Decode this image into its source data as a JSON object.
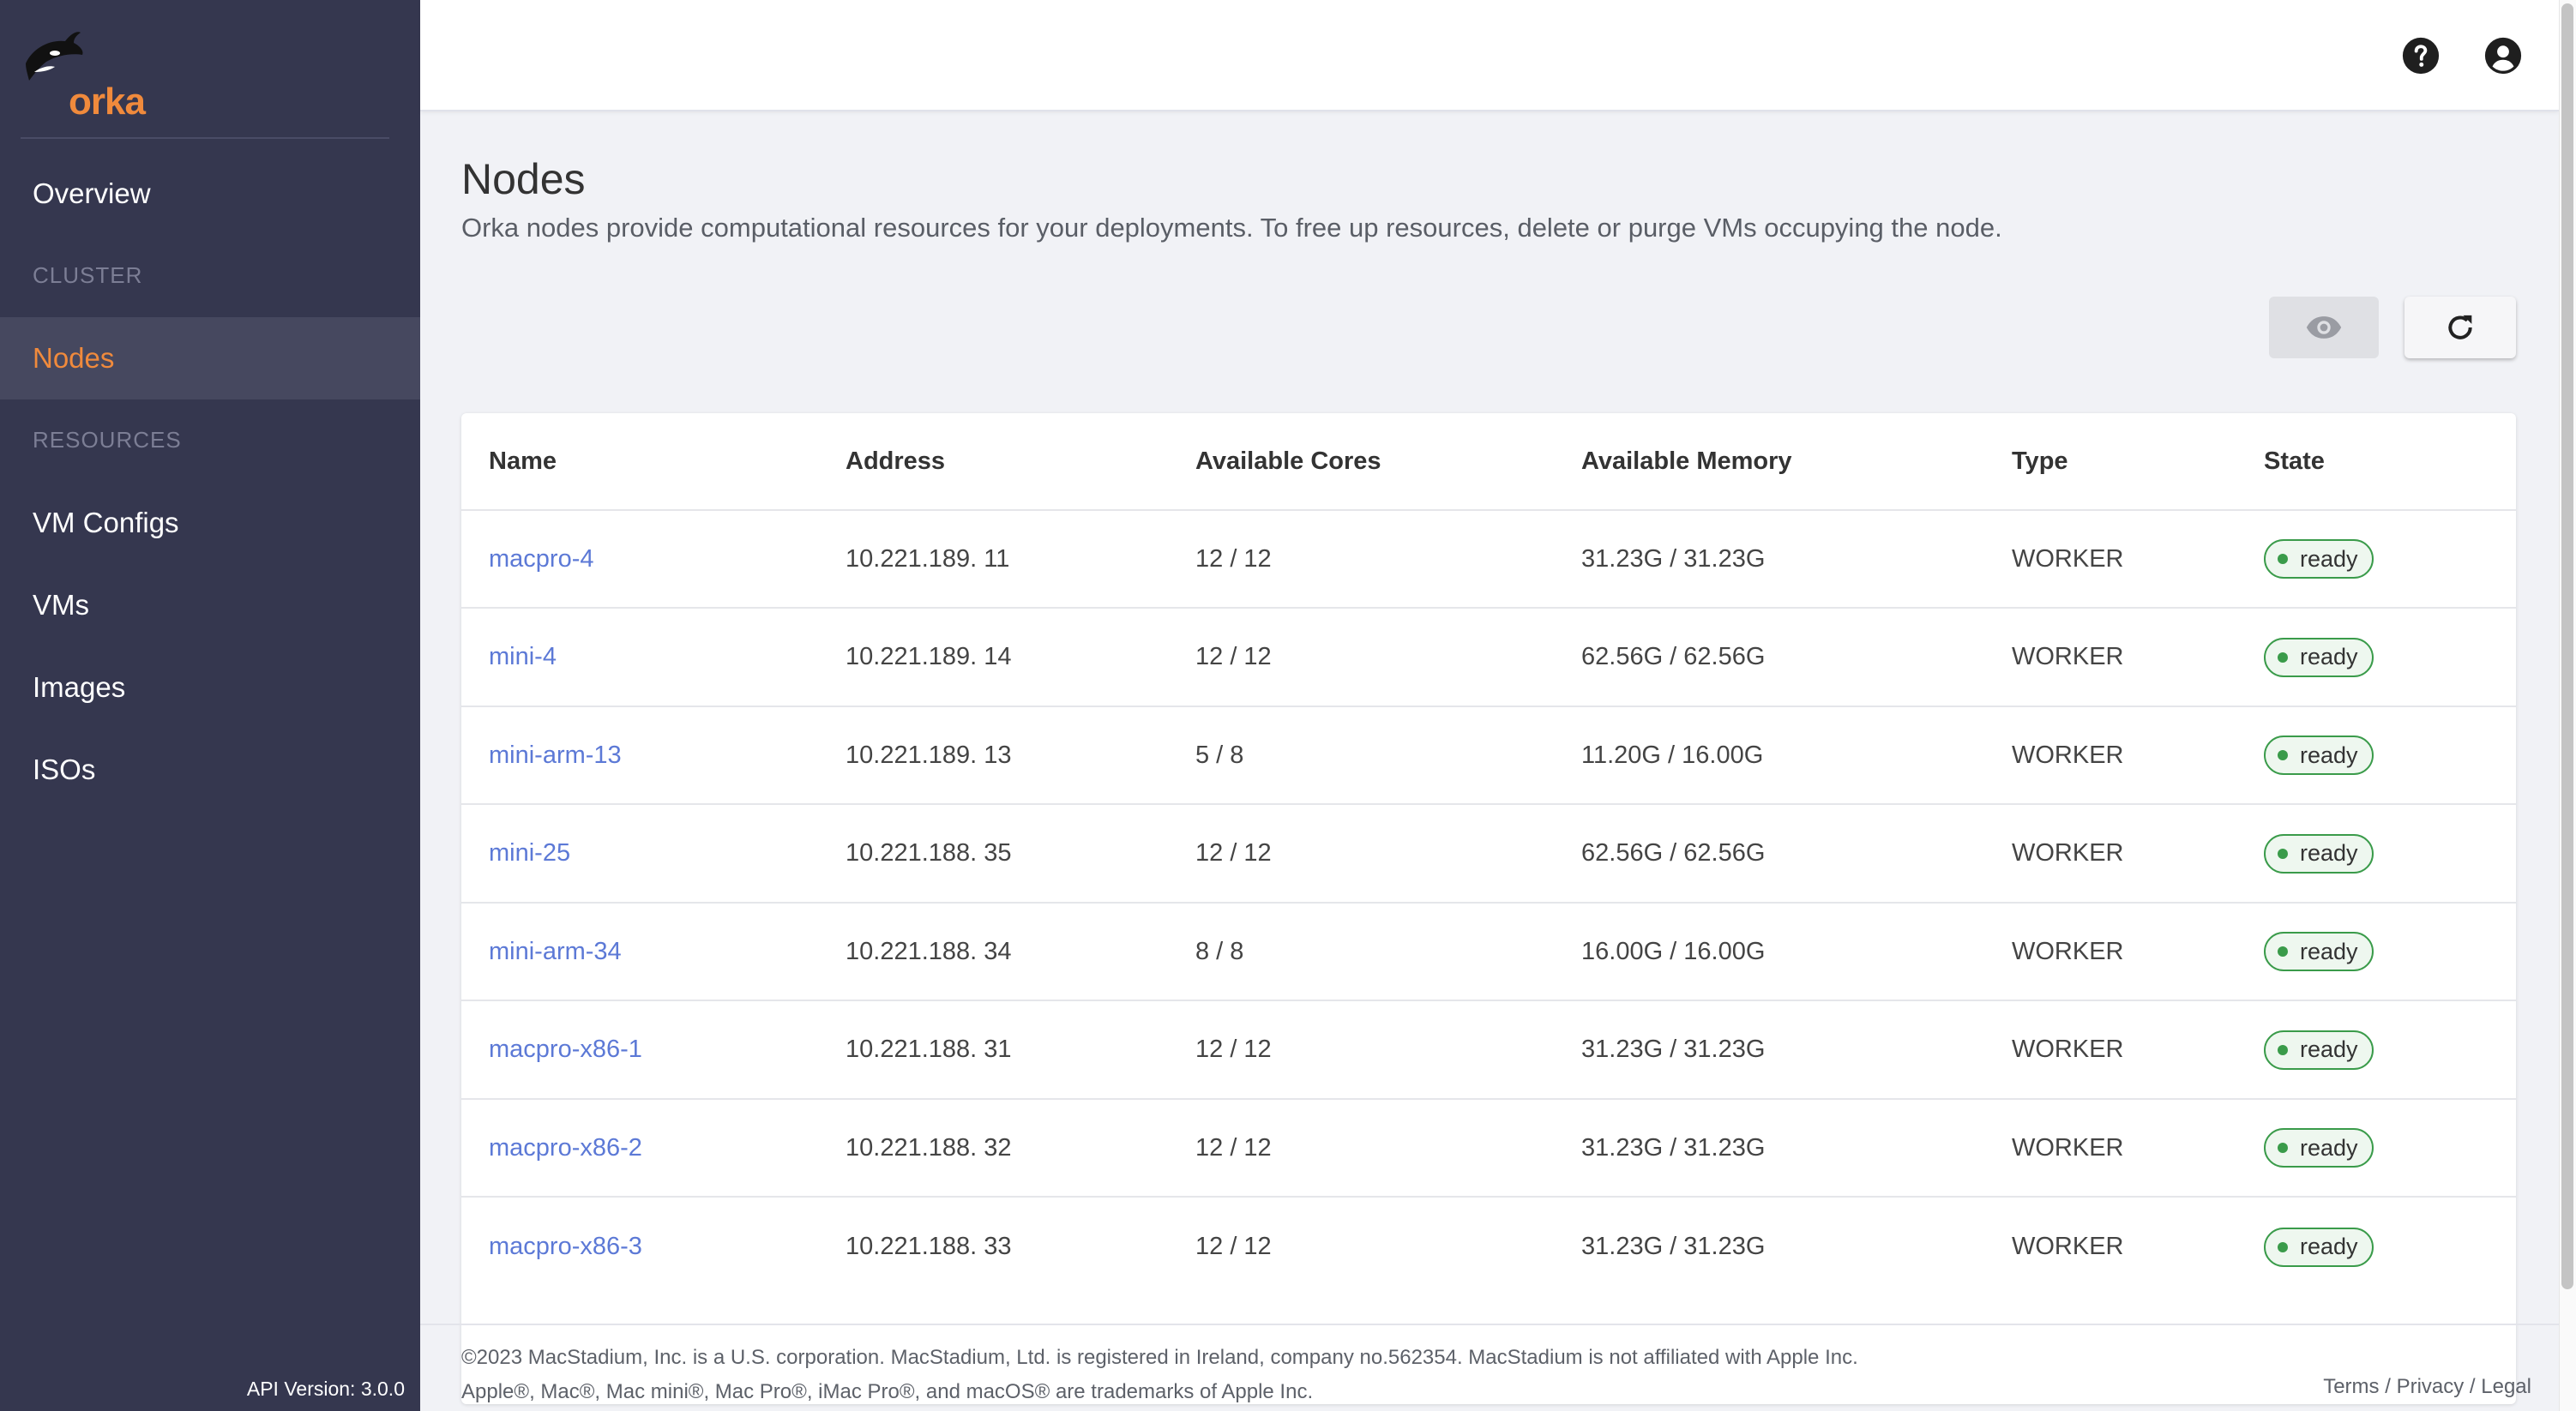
{
  "app": {
    "logo_text": "orka",
    "api_version": "API Version: 3.0.0"
  },
  "sidebar": {
    "overview": "Overview",
    "section_cluster": "CLUSTER",
    "nodes": "Nodes",
    "section_resources": "RESOURCES",
    "vm_configs": "VM Configs",
    "vms": "VMs",
    "images": "Images",
    "isos": "ISOs"
  },
  "page": {
    "title": "Nodes",
    "description": "Orka nodes provide computational resources for your deployments. To free up resources, delete or purge VMs occupying the node."
  },
  "table": {
    "headers": {
      "name": "Name",
      "address": "Address",
      "cores": "Available Cores",
      "memory": "Available Memory",
      "type": "Type",
      "state": "State"
    },
    "rows": [
      {
        "name": "macpro-4",
        "address": "10.221.189. 11",
        "cores": "12 / 12",
        "memory": "31.23G / 31.23G",
        "type": "WORKER",
        "state": "ready"
      },
      {
        "name": "mini-4",
        "address": "10.221.189. 14",
        "cores": "12 / 12",
        "memory": "62.56G / 62.56G",
        "type": "WORKER",
        "state": "ready"
      },
      {
        "name": "mini-arm-13",
        "address": "10.221.189. 13",
        "cores": "5 / 8",
        "memory": "11.20G / 16.00G",
        "type": "WORKER",
        "state": "ready"
      },
      {
        "name": "mini-25",
        "address": "10.221.188. 35",
        "cores": "12 / 12",
        "memory": "62.56G / 62.56G",
        "type": "WORKER",
        "state": "ready"
      },
      {
        "name": "mini-arm-34",
        "address": "10.221.188. 34",
        "cores": "8 / 8",
        "memory": "16.00G / 16.00G",
        "type": "WORKER",
        "state": "ready"
      },
      {
        "name": "macpro-x86-1",
        "address": "10.221.188. 31",
        "cores": "12 / 12",
        "memory": "31.23G / 31.23G",
        "type": "WORKER",
        "state": "ready"
      },
      {
        "name": "macpro-x86-2",
        "address": "10.221.188. 32",
        "cores": "12 / 12",
        "memory": "31.23G / 31.23G",
        "type": "WORKER",
        "state": "ready"
      },
      {
        "name": "macpro-x86-3",
        "address": "10.221.188. 33",
        "cores": "12 / 12",
        "memory": "31.23G / 31.23G",
        "type": "WORKER",
        "state": "ready"
      }
    ]
  },
  "footer": {
    "line1": "©2023 MacStadium, Inc. is a U.S. corporation. MacStadium, Ltd. is registered in Ireland, company no.562354. MacStadium is not affiliated with Apple Inc.",
    "line2": "Apple®, Mac®, Mac mini®, Mac Pro®, iMac Pro®, and macOS® are trademarks of Apple Inc.",
    "terms": "Terms",
    "privacy": "Privacy",
    "legal": "Legal",
    "sep": "/"
  },
  "icons": {
    "help": "help-circle-icon",
    "account": "account-circle-icon",
    "eye": "eye-icon",
    "refresh": "refresh-icon",
    "logo": "orca-icon"
  },
  "colors": {
    "sidebar_bg": "#35374f",
    "accent": "#f08a3c",
    "link": "#5c79d6",
    "ready": "#3a9b4a"
  }
}
